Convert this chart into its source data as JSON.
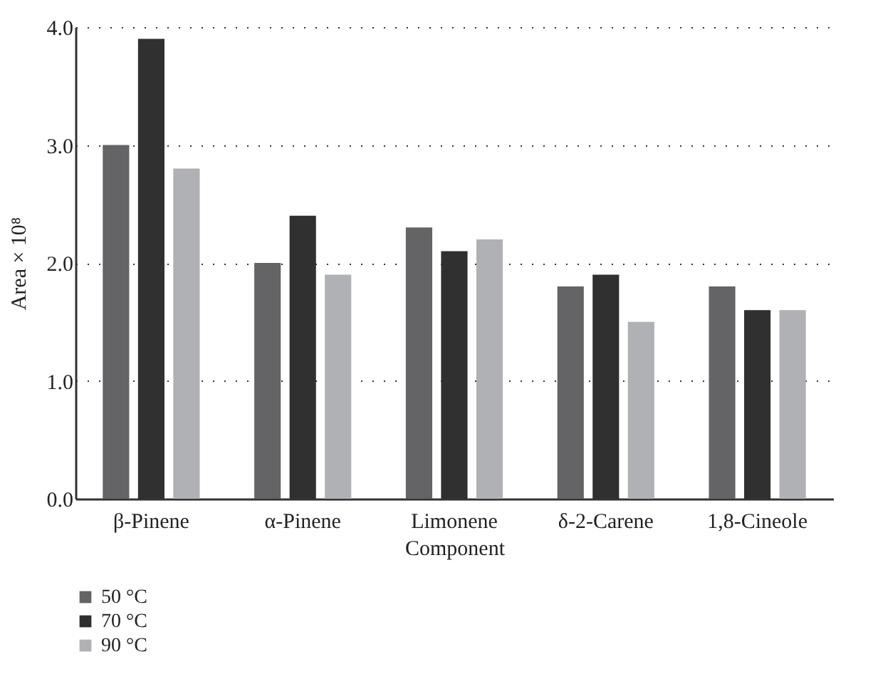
{
  "chart_data": {
    "type": "bar",
    "xlabel": "Component",
    "ylabel": "Area × 10⁸",
    "categories": [
      "β-Pinene",
      "α-Pinene",
      "Limonene",
      "δ-2-Carene",
      "1,8-Cineole"
    ],
    "series": [
      {
        "name": "50 °C",
        "color": "#646466",
        "values": [
          3.0,
          2.0,
          2.3,
          1.8,
          1.8
        ]
      },
      {
        "name": "70 °C",
        "color": "#303031",
        "values": [
          3.9,
          2.4,
          2.1,
          1.9,
          1.6
        ]
      },
      {
        "name": "90 °C",
        "color": "#b0b1b4",
        "values": [
          2.8,
          1.9,
          2.2,
          1.5,
          1.6
        ]
      }
    ],
    "ylim": [
      0,
      4
    ],
    "yticks": [
      {
        "value": 0,
        "label": "0.0"
      },
      {
        "value": 1,
        "label": "1.0"
      },
      {
        "value": 2,
        "label": "2.0"
      },
      {
        "value": 3,
        "label": "3.0"
      },
      {
        "value": 4,
        "label": "4.0"
      }
    ],
    "grid": "y",
    "legend": "bottom"
  }
}
